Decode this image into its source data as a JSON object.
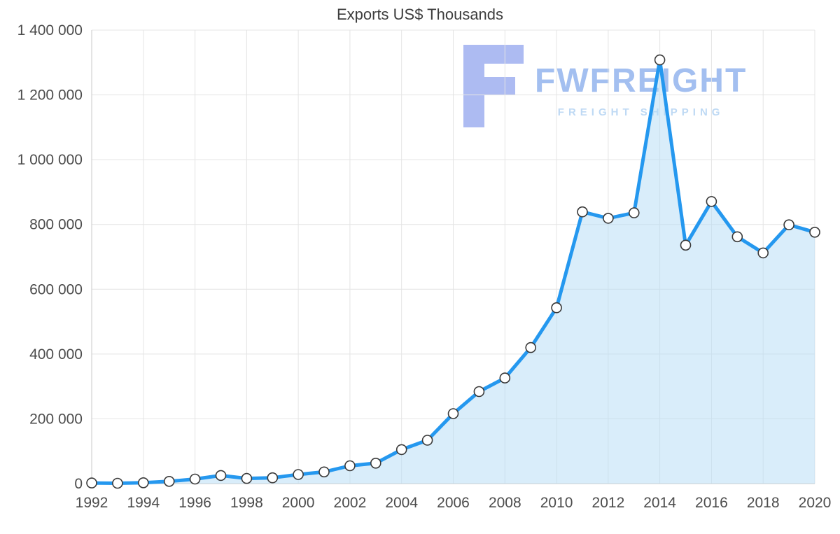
{
  "chart_data": {
    "type": "area",
    "title": "Exports US$ Thousands",
    "xlabel": "",
    "ylabel": "",
    "x": [
      1992,
      1993,
      1994,
      1995,
      1996,
      1997,
      1998,
      1999,
      2000,
      2001,
      2002,
      2003,
      2004,
      2005,
      2006,
      2007,
      2008,
      2009,
      2010,
      2011,
      2012,
      2013,
      2014,
      2015,
      2016,
      2017,
      2018,
      2019,
      2020
    ],
    "values": [
      2000,
      1000,
      2500,
      7000,
      14000,
      25000,
      16000,
      18000,
      28000,
      36000,
      55000,
      63000,
      105000,
      134000,
      216000,
      284000,
      326000,
      420000,
      543000,
      839000,
      819000,
      836000,
      1308000,
      736000,
      871000,
      762000,
      712000,
      799000,
      776000
    ],
    "ylim": [
      0,
      1400000
    ],
    "ytick_step": 200000,
    "xtick_step": 2,
    "grid": true,
    "legend": "none",
    "y_tick_labels": [
      "0",
      "200 000",
      "400 000",
      "600 000",
      "800 000",
      "1 000 000",
      "1 200 000",
      "1 400 000"
    ],
    "x_tick_labels": [
      "1992",
      "1994",
      "1996",
      "1998",
      "2000",
      "2002",
      "2004",
      "2006",
      "2008",
      "2010",
      "2012",
      "2014",
      "2016",
      "2018",
      "2020"
    ],
    "colors": {
      "line": "#2598ef",
      "fill": "rgba(180, 219, 246, 0.5)",
      "marker_fill": "#ffffff",
      "marker_stroke": "#3a3a3a",
      "grid": "#e4e4e4",
      "axis": "#c8c8c8",
      "tick_text": "#4c4c4c",
      "title_text": "#3d3d3d"
    }
  },
  "watermark": {
    "brand": "FWFREIGHT",
    "tagline": "FREIGHT SHIPPING",
    "brand_color": "#a3bff0",
    "tagline_color": "#bed9f4",
    "logo_color": "#adbbf2"
  }
}
